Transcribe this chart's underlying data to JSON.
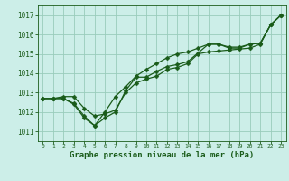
{
  "title": "Graphe pression niveau de la mer (hPa)",
  "yticks": [
    1011,
    1012,
    1013,
    1014,
    1015,
    1016,
    1017
  ],
  "ylim": [
    1010.5,
    1017.5
  ],
  "xlim": [
    -0.5,
    23.5
  ],
  "background_color": "#cceee8",
  "grid_color": "#99ccbb",
  "line_color": "#1a5c1a",
  "marker": "D",
  "markersize": 2.5,
  "linewidth": 0.9,
  "series": {
    "line1": [
      1012.7,
      1012.7,
      1012.8,
      1012.8,
      1012.2,
      1011.8,
      1011.9,
      1012.1,
      1013.0,
      1013.5,
      1013.7,
      1013.85,
      1014.2,
      1014.3,
      1014.5,
      1015.0,
      1015.1,
      1015.15,
      1015.2,
      1015.25,
      1015.3,
      1015.5,
      1016.5,
      1017.0
    ],
    "line2": [
      1012.7,
      1012.7,
      1012.7,
      1012.4,
      1011.7,
      1011.3,
      1011.7,
      1012.0,
      1013.1,
      1013.8,
      1013.8,
      1014.1,
      1014.35,
      1014.45,
      1014.6,
      1015.05,
      1015.5,
      1015.5,
      1015.3,
      1015.3,
      1015.5,
      1015.55,
      1016.5,
      1017.0
    ],
    "line3": [
      1012.7,
      1012.7,
      1012.7,
      1012.45,
      1011.8,
      1011.3,
      1012.0,
      1012.8,
      1013.3,
      1013.85,
      1014.2,
      1014.5,
      1014.8,
      1015.0,
      1015.1,
      1015.3,
      1015.5,
      1015.5,
      1015.35,
      1015.35,
      1015.5,
      1015.55,
      1016.5,
      1017.0
    ]
  }
}
